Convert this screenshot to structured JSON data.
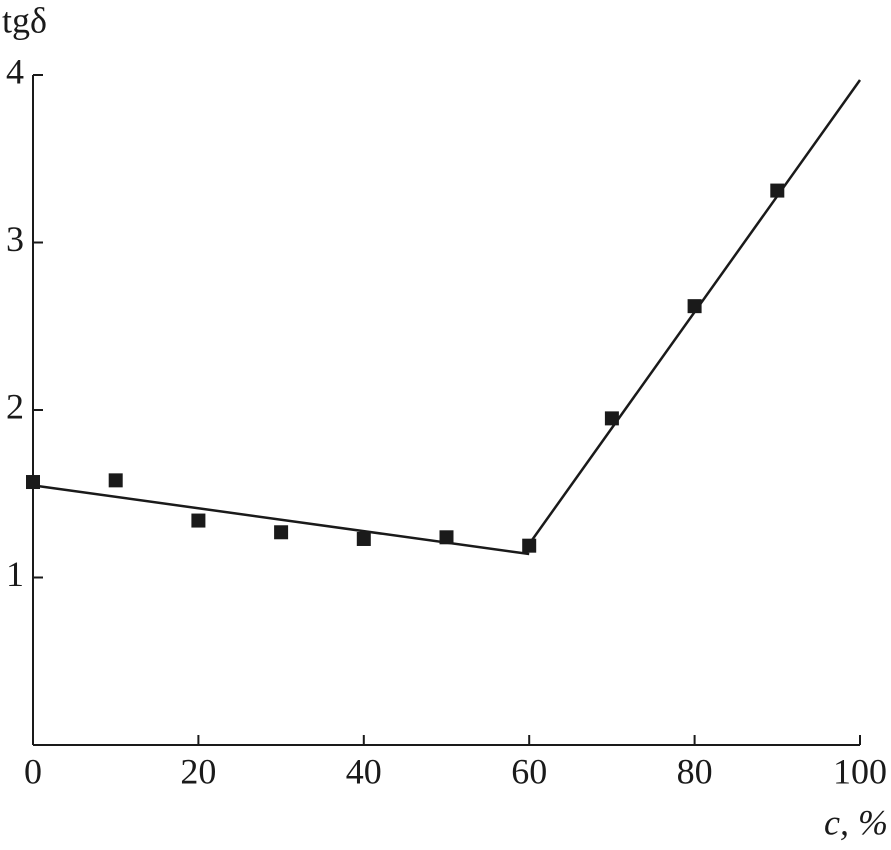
{
  "chart_data": {
    "type": "scatter",
    "xlabel": "c, %",
    "ylabel": "tgδ",
    "xlim": [
      0,
      100
    ],
    "xticks": [
      0,
      20,
      40,
      60,
      80,
      100
    ],
    "ylim": [
      0,
      4
    ],
    "yticks": [
      1,
      2,
      3,
      4
    ],
    "points": {
      "color": "#1a1a1a",
      "x": [
        0,
        10,
        20,
        30,
        40,
        50,
        60,
        70,
        80,
        90
      ],
      "values": [
        1.57,
        1.58,
        1.34,
        1.27,
        1.23,
        1.24,
        1.19,
        1.95,
        2.62,
        3.31
      ]
    },
    "fit_lines": [
      {
        "color": "#1a1a1a",
        "x": [
          0,
          60
        ],
        "values": [
          1.55,
          1.14
        ]
      },
      {
        "color": "#1a1a1a",
        "x": [
          60,
          100
        ],
        "values": [
          1.2,
          3.97
        ]
      }
    ]
  }
}
